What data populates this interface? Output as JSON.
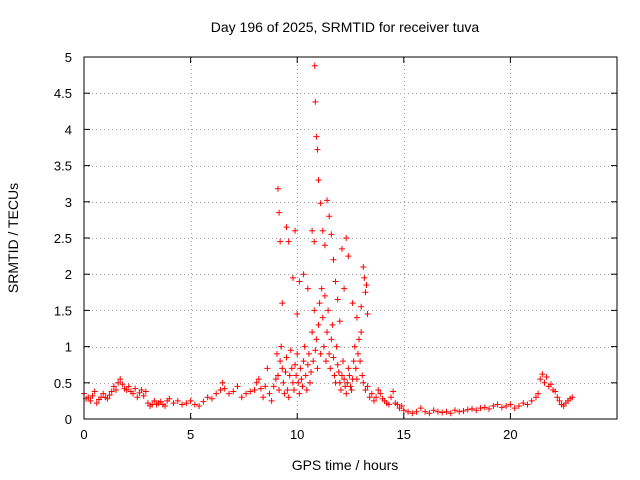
{
  "chart_data": {
    "type": "scatter",
    "title": "Day 196 of 2025, SRMTID for receiver tuva",
    "xlabel": "GPS time / hours",
    "ylabel": "SRMTID / TECUs",
    "xlim": [
      0,
      25
    ],
    "ylim": [
      0,
      5
    ],
    "xticks": [
      0,
      5,
      10,
      15,
      20
    ],
    "yticks": [
      0,
      0.5,
      1,
      1.5,
      2,
      2.5,
      3,
      3.5,
      4,
      4.5,
      5
    ],
    "grid": true,
    "marker": "plus",
    "color": "#ff0000",
    "series": [
      {
        "name": "SRMTID",
        "x": [
          0.0,
          0.1,
          0.2,
          0.3,
          0.4,
          0.5,
          0.6,
          0.7,
          0.8,
          0.9,
          1.0,
          1.1,
          1.2,
          1.3,
          1.4,
          1.5,
          1.6,
          1.7,
          1.8,
          1.9,
          2.0,
          2.1,
          2.2,
          2.3,
          2.4,
          2.5,
          2.6,
          2.7,
          2.8,
          2.9,
          3.0,
          3.1,
          3.2,
          3.3,
          3.4,
          3.5,
          3.6,
          3.7,
          3.8,
          3.9,
          4.0,
          4.2,
          4.4,
          4.6,
          4.8,
          5.0,
          5.2,
          5.4,
          5.6,
          5.8,
          6.0,
          6.2,
          6.4,
          6.5,
          6.6,
          6.8,
          7.0,
          7.2,
          7.4,
          7.6,
          7.8,
          8.0,
          8.1,
          8.2,
          8.3,
          8.4,
          8.5,
          8.6,
          8.7,
          8.8,
          8.9,
          9.0,
          9.05,
          9.1,
          9.15,
          9.2,
          9.25,
          9.3,
          9.35,
          9.4,
          9.45,
          9.5,
          9.55,
          9.6,
          9.65,
          9.7,
          9.75,
          9.8,
          9.85,
          9.9,
          9.95,
          10.0,
          10.05,
          10.1,
          10.15,
          10.2,
          10.25,
          10.3,
          10.35,
          10.4,
          10.45,
          10.5,
          10.55,
          10.6,
          10.65,
          10.7,
          10.75,
          10.8,
          10.85,
          10.9,
          10.95,
          11.0,
          11.05,
          11.1,
          11.15,
          11.2,
          11.25,
          11.3,
          11.35,
          11.4,
          11.45,
          11.5,
          11.55,
          11.6,
          11.65,
          11.7,
          11.75,
          11.8,
          11.85,
          11.9,
          11.95,
          12.0,
          12.05,
          12.1,
          12.15,
          12.2,
          12.25,
          12.3,
          12.35,
          12.4,
          12.45,
          12.5,
          12.55,
          12.6,
          12.65,
          12.7,
          12.75,
          12.8,
          12.85,
          12.9,
          12.95,
          13.0,
          13.05,
          13.1,
          13.2,
          13.3,
          13.4,
          13.5,
          13.6,
          13.7,
          13.8,
          13.9,
          14.0,
          14.1,
          14.2,
          14.3,
          14.4,
          14.5,
          14.6,
          14.7,
          14.8,
          14.9,
          15.0,
          15.2,
          15.4,
          15.6,
          15.8,
          16.0,
          16.2,
          16.4,
          16.6,
          16.8,
          17.0,
          17.2,
          17.4,
          17.6,
          17.8,
          18.0,
          18.2,
          18.4,
          18.6,
          18.8,
          19.0,
          19.2,
          19.4,
          19.6,
          19.8,
          20.0,
          20.2,
          20.4,
          20.6,
          20.8,
          21.0,
          21.2,
          21.3,
          21.4,
          21.5,
          21.6,
          21.7,
          21.8,
          21.9,
          22.0,
          22.1,
          22.2,
          22.3,
          22.4,
          22.5,
          22.6,
          22.7,
          22.8,
          22.9,
          9.1,
          9.15,
          9.2,
          9.3,
          9.5,
          9.6,
          9.8,
          9.9,
          10.0,
          10.1,
          10.3,
          10.5,
          10.7,
          10.8,
          10.82,
          10.85,
          10.9,
          10.95,
          11.0,
          11.1,
          11.2,
          11.3,
          11.4,
          11.5,
          11.6,
          11.7,
          11.8,
          11.9,
          12.0,
          12.1,
          12.2,
          12.3,
          12.4,
          12.6,
          12.8,
          13.0,
          13.1,
          13.15,
          13.2,
          13.25,
          13.3
        ],
        "y": [
          0.35,
          0.28,
          0.3,
          0.25,
          0.32,
          0.38,
          0.22,
          0.27,
          0.3,
          0.35,
          0.3,
          0.28,
          0.33,
          0.38,
          0.45,
          0.4,
          0.5,
          0.55,
          0.48,
          0.42,
          0.4,
          0.45,
          0.38,
          0.35,
          0.42,
          0.3,
          0.36,
          0.4,
          0.32,
          0.38,
          0.22,
          0.18,
          0.2,
          0.25,
          0.2,
          0.22,
          0.24,
          0.2,
          0.18,
          0.25,
          0.28,
          0.22,
          0.25,
          0.2,
          0.22,
          0.25,
          0.2,
          0.18,
          0.24,
          0.3,
          0.28,
          0.35,
          0.4,
          0.5,
          0.42,
          0.35,
          0.38,
          0.45,
          0.3,
          0.35,
          0.38,
          0.4,
          0.5,
          0.55,
          0.42,
          0.3,
          0.45,
          0.7,
          0.35,
          0.25,
          0.45,
          0.55,
          0.9,
          0.6,
          0.4,
          0.8,
          1.0,
          0.7,
          0.5,
          0.35,
          0.65,
          0.85,
          0.4,
          0.3,
          0.6,
          0.95,
          0.7,
          0.5,
          0.4,
          0.75,
          0.6,
          0.9,
          0.5,
          0.35,
          0.7,
          0.55,
          0.45,
          0.8,
          1.0,
          0.6,
          0.4,
          0.75,
          0.9,
          0.5,
          0.65,
          1.2,
          0.8,
          1.5,
          0.95,
          1.1,
          0.7,
          1.3,
          1.6,
          0.9,
          1.8,
          1.4,
          1.0,
          1.7,
          0.8,
          1.2,
          1.5,
          0.9,
          0.7,
          1.1,
          1.3,
          0.85,
          0.6,
          0.5,
          1.0,
          0.75,
          0.65,
          0.5,
          0.4,
          0.6,
          0.8,
          0.55,
          0.45,
          0.35,
          0.5,
          0.7,
          0.6,
          0.45,
          0.4,
          0.55,
          0.8,
          1.0,
          0.7,
          0.55,
          0.9,
          1.1,
          0.8,
          1.2,
          0.6,
          0.5,
          0.4,
          0.45,
          0.3,
          0.35,
          0.25,
          0.3,
          0.4,
          0.35,
          0.28,
          0.25,
          0.22,
          0.2,
          0.3,
          0.38,
          0.22,
          0.2,
          0.15,
          0.18,
          0.12,
          0.1,
          0.08,
          0.1,
          0.15,
          0.1,
          0.08,
          0.12,
          0.1,
          0.09,
          0.1,
          0.08,
          0.12,
          0.1,
          0.11,
          0.13,
          0.14,
          0.12,
          0.15,
          0.16,
          0.14,
          0.18,
          0.2,
          0.16,
          0.18,
          0.2,
          0.15,
          0.18,
          0.22,
          0.2,
          0.25,
          0.3,
          0.35,
          0.55,
          0.62,
          0.5,
          0.58,
          0.45,
          0.48,
          0.4,
          0.38,
          0.3,
          0.25,
          0.2,
          0.18,
          0.22,
          0.25,
          0.28,
          0.3,
          3.18,
          2.85,
          2.45,
          1.6,
          2.65,
          2.45,
          1.95,
          2.6,
          1.45,
          1.9,
          2.0,
          1.8,
          2.6,
          2.45,
          4.88,
          4.38,
          3.9,
          3.72,
          3.3,
          2.98,
          2.6,
          2.4,
          3.02,
          2.8,
          2.55,
          2.2,
          1.9,
          1.65,
          1.35,
          2.35,
          1.8,
          2.5,
          2.25,
          1.6,
          1.4,
          1.55,
          2.1,
          1.95,
          1.75,
          1.85,
          1.45
        ]
      }
    ]
  }
}
